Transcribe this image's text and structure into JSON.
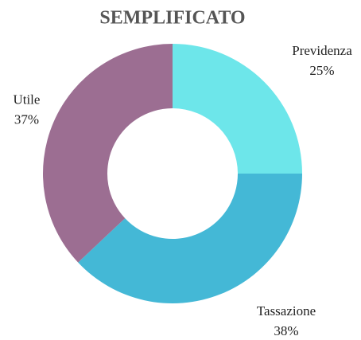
{
  "chart_data": {
    "type": "donut",
    "title": "SEMPLIFICATO",
    "categories": [
      "Previdenza",
      "Tassazione",
      "Utile"
    ],
    "values": [
      25,
      38,
      37
    ],
    "value_labels": [
      "25%",
      "38%",
      "37%"
    ],
    "colors": [
      "#6de6ea",
      "#44b8d6",
      "#9c6e92"
    ]
  }
}
